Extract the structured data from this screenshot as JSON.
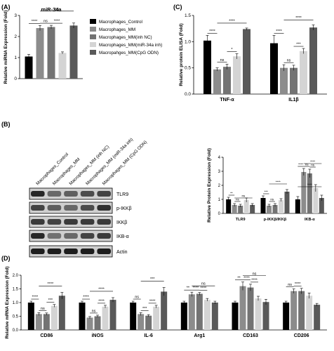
{
  "panels": {
    "A": "(A)",
    "B": "(B)",
    "C": "(C)",
    "D": "(D)"
  },
  "colors": [
    "#000000",
    "#8c8c8c",
    "#737373",
    "#d4d4d4",
    "#595959"
  ],
  "legend": [
    "Macrophages_Control",
    "Macrophages_MM",
    "Macrophages_MM(inh NC)",
    "Macrophages_MM(miR-34a inh)",
    "Macropahges_MM(CpG ODN)"
  ],
  "blot": {
    "lanes": [
      "Macrophages_Control",
      "Macrophages_MM",
      "Macrophages_MM (inh NC)",
      "Macrophages_MM (miR-34a inh)",
      "Macrophages_MM (CpG ODN)"
    ],
    "rows": [
      "TLR9",
      "p-IKKβ",
      "IKKβ",
      "IKB-α",
      "Actin"
    ]
  },
  "chart_data": [
    {
      "id": "A",
      "type": "bar",
      "title": "miR-34a",
      "ylabel": "Relative miRNA Expression (Fold)",
      "ylim": [
        0,
        3
      ],
      "yticks": [
        "0",
        "1",
        "2",
        "3"
      ],
      "categories": [
        ""
      ],
      "series": [
        {
          "values": [
            1.05
          ],
          "err": [
            0.1
          ]
        },
        {
          "values": [
            2.4
          ],
          "err": [
            0.12
          ]
        },
        {
          "values": [
            2.45
          ],
          "err": [
            0.08
          ]
        },
        {
          "values": [
            1.22
          ],
          "err": [
            0.05
          ]
        },
        {
          "values": [
            2.52
          ],
          "err": [
            0.12
          ]
        }
      ],
      "annotations": [
        "****",
        "ns",
        "****",
        "ns"
      ]
    },
    {
      "id": "C",
      "type": "bar",
      "ylabel": "Relative protein ELISA (Fold)",
      "ylim": [
        0,
        1.5
      ],
      "yticks": [
        "0.0",
        "0.5",
        "1.0",
        "1.5"
      ],
      "categories": [
        "TNF-α",
        "IL1β"
      ],
      "series": [
        {
          "values": [
            1.02,
            0.97
          ],
          "err": [
            0.1,
            0.15
          ]
        },
        {
          "values": [
            0.47,
            0.5
          ],
          "err": [
            0.03,
            0.06
          ]
        },
        {
          "values": [
            0.52,
            0.5
          ],
          "err": [
            0.05,
            0.05
          ]
        },
        {
          "values": [
            0.72,
            0.82
          ],
          "err": [
            0.05,
            0.05
          ]
        },
        {
          "values": [
            1.24,
            1.27
          ],
          "err": [
            0.02,
            0.05
          ]
        }
      ],
      "annotations": [
        "****",
        "ns",
        "*",
        "****",
        "****",
        "ns",
        "***",
        "****"
      ]
    },
    {
      "id": "B",
      "type": "bar",
      "ylabel": "Relative Protein Expression (Fold)",
      "ylim": [
        0,
        4
      ],
      "yticks": [
        "0",
        "1",
        "2",
        "3",
        "4"
      ],
      "categories": [
        "TLR9",
        "p-IKKβ/IKKβ",
        "IKB-α"
      ],
      "series": [
        {
          "values": [
            1.0,
            1.1,
            1.0
          ],
          "err": [
            0.15,
            0.15,
            0.2
          ]
        },
        {
          "values": [
            0.6,
            0.55,
            2.95
          ],
          "err": [
            0.1,
            0.1,
            0.25
          ]
        },
        {
          "values": [
            0.55,
            0.6,
            2.85
          ],
          "err": [
            0.1,
            0.1,
            0.3
          ]
        },
        {
          "values": [
            0.95,
            0.95,
            1.8
          ],
          "err": [
            0.15,
            0.1,
            0.25
          ]
        },
        {
          "values": [
            0.6,
            1.55,
            1.1
          ],
          "err": [
            0.1,
            0.15,
            0.2
          ]
        }
      ],
      "annotations": [
        "**",
        "ns",
        "ns",
        "***",
        "ns",
        "****",
        "****",
        "ns",
        "ns",
        "****",
        "****"
      ]
    },
    {
      "id": "D",
      "type": "bar",
      "ylabel": "Relative mRNA Expression (Fold)",
      "ylim": [
        0,
        2.0
      ],
      "yticks": [
        "0.0",
        "0.5",
        "1.0",
        "1.5",
        "2.0"
      ],
      "categories": [
        "CD86",
        "iNOS",
        "IL-6",
        "Arg1",
        "CD163",
        "CD206"
      ],
      "series": [
        {
          "values": [
            1.0,
            1.0,
            1.0,
            1.0,
            1.0,
            1.0
          ],
          "err": [
            0.05,
            0.05,
            0.05,
            0.05,
            0.05,
            0.05
          ]
        },
        {
          "values": [
            0.58,
            0.45,
            0.58,
            1.3,
            1.6,
            1.42
          ],
          "err": [
            0.05,
            0.04,
            0.05,
            0.08,
            0.15,
            0.08
          ]
        },
        {
          "values": [
            0.58,
            0.5,
            0.52,
            1.32,
            1.55,
            1.42
          ],
          "err": [
            0.04,
            0.04,
            0.04,
            0.05,
            0.12,
            0.1
          ]
        },
        {
          "values": [
            0.88,
            0.85,
            0.85,
            1.1,
            1.15,
            1.25
          ],
          "err": [
            0.05,
            0.05,
            0.05,
            0.05,
            0.08,
            0.1
          ]
        },
        {
          "values": [
            1.25,
            1.1,
            1.4,
            1.0,
            1.02,
            0.92
          ],
          "err": [
            0.12,
            0.08,
            0.15,
            0.05,
            0.1,
            0.05
          ]
        }
      ],
      "annotations": [
        "****",
        "ns",
        "***",
        "****",
        "****",
        "ns",
        "****",
        "****",
        "ns",
        "***",
        "****",
        "***",
        "**",
        "****",
        "****",
        "ns",
        "**",
        "****",
        "****",
        "ns",
        "ns",
        "****"
      ]
    }
  ]
}
